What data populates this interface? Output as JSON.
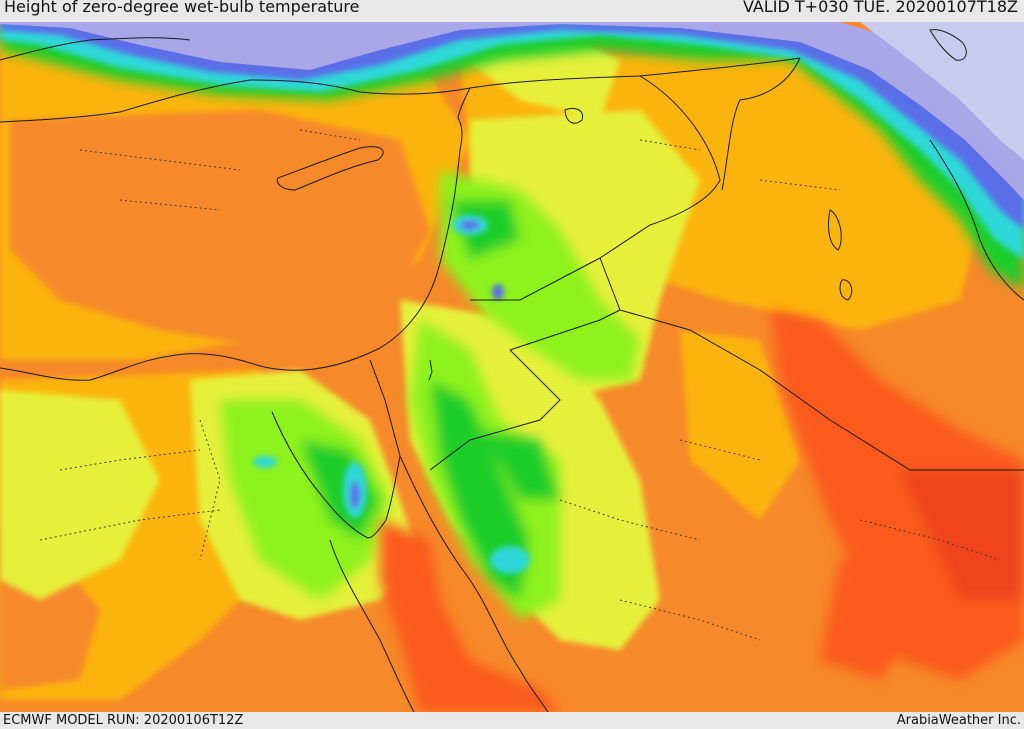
{
  "header": {
    "title": "Height of zero-degree wet-bulb temperature",
    "valid": "VALID T+030 TUE. 20200107T18Z"
  },
  "footer": {
    "model_run": "ECMWF MODEL RUN: 20200106T12Z",
    "credit": "ArabiaWeather Inc."
  },
  "palette": {
    "lightest": "#c9cbee",
    "lavender": "#a9a7e8",
    "blue": "#5a6ee8",
    "cyan": "#2fd8d8",
    "teal": "#22c9a0",
    "green": "#1ccd2a",
    "light_green": "#8ef21c",
    "yellow_green": "#e6f03a",
    "yellow": "#f4e51e",
    "amber": "#fbb40f",
    "orange": "#f6892a",
    "red_orange": "#fb5a1c",
    "red": "#f0441a"
  }
}
